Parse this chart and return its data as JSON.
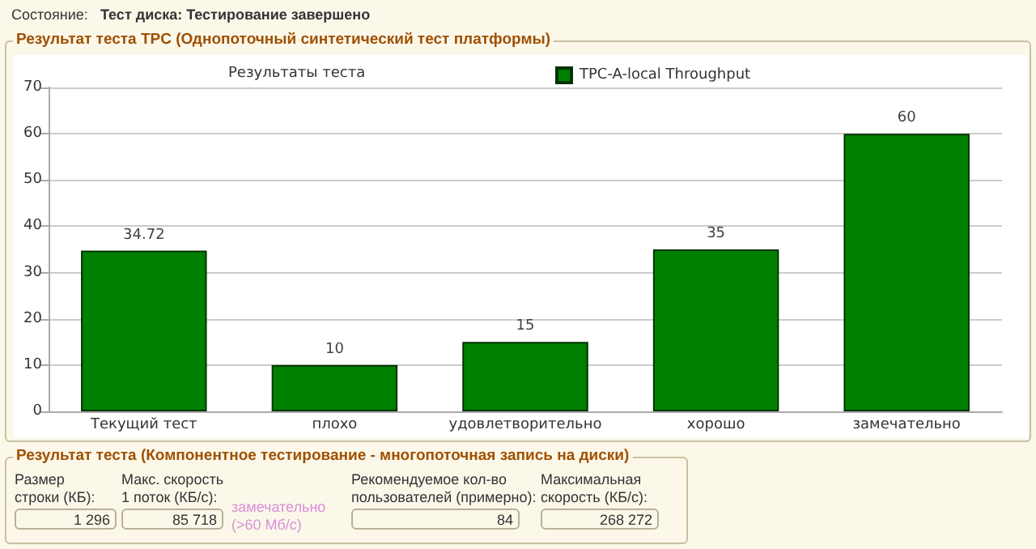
{
  "chart_data": [
    {
      "type": "bar",
      "title": "Результат теста TPC (Однопоточный синтетический тест платформы)",
      "subtitle": "Результаты теста",
      "annotations": [
        "Состояние:",
        "Тест диска: Тестирование завершено"
      ],
      "categories": [
        "Текущий тест",
        "плохо",
        "удовлетворительно",
        "хорошо",
        "замечательно"
      ],
      "series": [
        {
          "name": "TPC-A-local Throughput",
          "color": "#008000",
          "values": [
            34.72,
            10,
            15,
            35,
            60
          ]
        }
      ],
      "ylim": [
        0,
        70
      ],
      "yticks": [
        0,
        10,
        20,
        30,
        40,
        50,
        60,
        70
      ],
      "grid": "y",
      "legend": "top",
      "data_labels": true
    },
    {
      "type": "other",
      "title": "Результат теста (Компонентное тестирование - многопоточная запись на диски)",
      "annotations": [
        "Размер\nстроки (КБ):",
        "1 296",
        "Макс. скорость\n1 поток (КБ/с):",
        "85 718",
        "замечательно\n(>60 Мб/с)",
        "Рекомендуемое кол-во\nпользователей (примерно):",
        "84",
        "Максимальная\nскорость (КБ/с):",
        "268 272"
      ]
    }
  ]
}
